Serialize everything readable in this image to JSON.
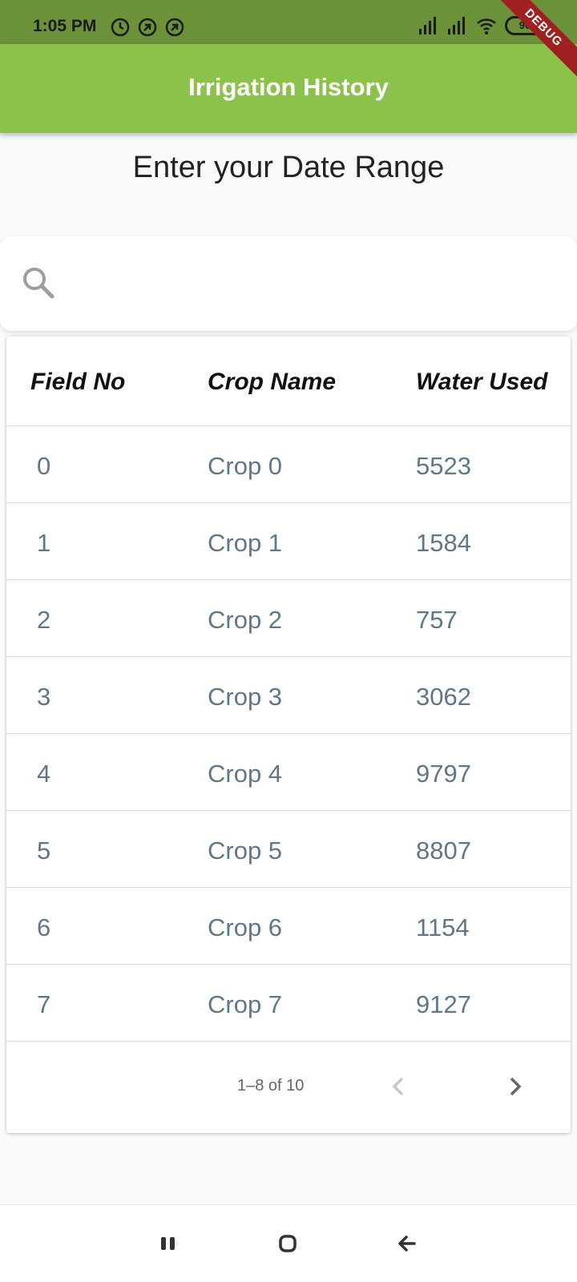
{
  "status_bar": {
    "time": "1:05 PM",
    "battery": "96"
  },
  "debug_banner": "DEBUG",
  "app_bar": {
    "title": "Irrigation History"
  },
  "subtitle": "Enter your Date Range",
  "search": {
    "placeholder": ""
  },
  "table": {
    "headers": [
      "Field No",
      "Crop Name",
      "Water Used"
    ],
    "rows": [
      {
        "field": "0",
        "crop": "Crop 0",
        "water": "5523"
      },
      {
        "field": "1",
        "crop": "Crop 1",
        "water": "1584"
      },
      {
        "field": "2",
        "crop": "Crop 2",
        "water": "757"
      },
      {
        "field": "3",
        "crop": "Crop 3",
        "water": "3062"
      },
      {
        "field": "4",
        "crop": "Crop 4",
        "water": "9797"
      },
      {
        "field": "5",
        "crop": "Crop 5",
        "water": "8807"
      },
      {
        "field": "6",
        "crop": "Crop 6",
        "water": "1154"
      },
      {
        "field": "7",
        "crop": "Crop 7",
        "water": "9127"
      }
    ]
  },
  "pagination": {
    "range": "1–8 of 10"
  },
  "icons": {
    "search": "search-icon",
    "prev": "chevron-left-icon",
    "next": "chevron-right-icon",
    "nav_recents": "recents-icon",
    "nav_home": "home-icon",
    "nav_back": "back-arrow-icon"
  },
  "colors": {
    "app_bar": "#8bc34a",
    "status_bar": "#6b9238",
    "cell_text": "#5f7789"
  }
}
